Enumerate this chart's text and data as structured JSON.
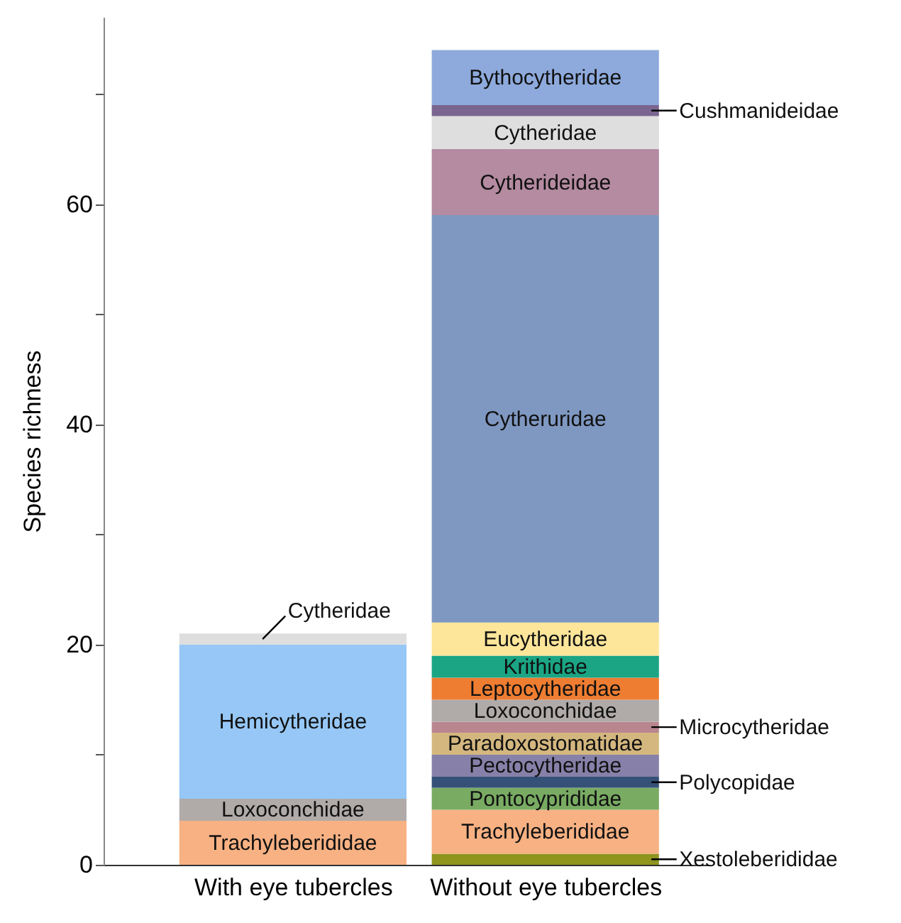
{
  "chart_data": {
    "type": "bar",
    "stacked": true,
    "ylabel": "Species richness",
    "categories": [
      "With eye tubercles",
      "Without eye tubercles"
    ],
    "ylim": [
      0,
      77
    ],
    "yticks": [
      0,
      {
        "value": 10,
        "label": null
      },
      20,
      {
        "value": 30,
        "label": null
      },
      40,
      {
        "value": 50,
        "label": null
      },
      60,
      {
        "value": 70,
        "label": null
      }
    ],
    "series": [
      {
        "name": "Xestoleberididae",
        "color": "#8f951f",
        "values": [
          null,
          1
        ]
      },
      {
        "name": "Trachyleberididae",
        "color": "#f7b183",
        "values": [
          4,
          4
        ]
      },
      {
        "name": "Pontocyprididae",
        "color": "#79ab63",
        "values": [
          null,
          2
        ]
      },
      {
        "name": "Polycopidae",
        "color": "#355177",
        "values": [
          null,
          1
        ]
      },
      {
        "name": "Pectocytheridae",
        "color": "#8780a8",
        "values": [
          null,
          2
        ]
      },
      {
        "name": "Paradoxostomatidae",
        "color": "#d4b77f",
        "values": [
          null,
          2
        ]
      },
      {
        "name": "Microcytheridae",
        "color": "#b9868f",
        "values": [
          null,
          1
        ]
      },
      {
        "name": "Loxoconchidae",
        "color": "#b0aaa9",
        "values": [
          2,
          2
        ]
      },
      {
        "name": "Hemicytheridae",
        "color": "#96c7f6",
        "values": [
          14,
          null
        ]
      },
      {
        "name": "Leptocytheridae",
        "color": "#ee7d31",
        "values": [
          null,
          2
        ]
      },
      {
        "name": "Krithidae",
        "color": "#1ba584",
        "values": [
          null,
          2
        ]
      },
      {
        "name": "Eucytheridae",
        "color": "#fde59a",
        "values": [
          null,
          3
        ]
      },
      {
        "name": "Cytheruridae",
        "color": "#7f98c2",
        "values": [
          null,
          37
        ]
      },
      {
        "name": "Cytherideidae",
        "color": "#b48ba0",
        "values": [
          null,
          6
        ]
      },
      {
        "name": "Cytheridae",
        "color": "#dedede",
        "values": [
          1,
          3
        ]
      },
      {
        "name": "Cushmanideidae",
        "color": "#7a6590",
        "values": [
          null,
          1
        ]
      },
      {
        "name": "Bythocytheridae",
        "color": "#8eaadc",
        "values": [
          null,
          5
        ]
      }
    ]
  }
}
